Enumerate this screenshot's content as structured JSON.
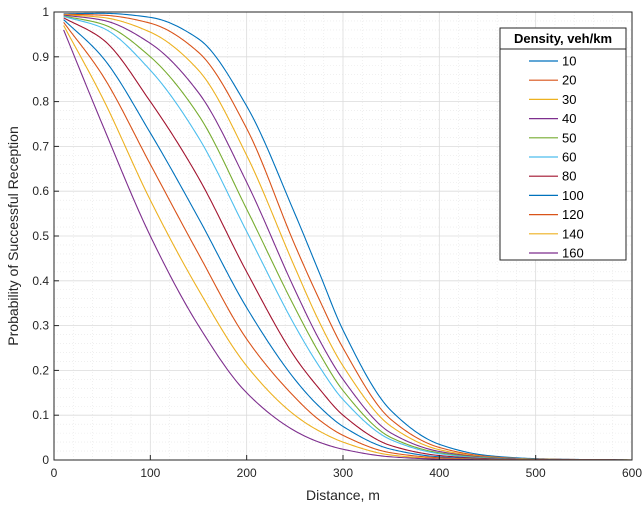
{
  "chart_data": {
    "type": "line",
    "title": "",
    "xlabel": "Distance, m",
    "ylabel": "Probability of Successful Reception",
    "xlim": [
      0,
      600
    ],
    "ylim": [
      0,
      1
    ],
    "x_ticks": [
      "0",
      "100",
      "200",
      "300",
      "400",
      "500",
      "600"
    ],
    "y_ticks": [
      "0",
      "0.1",
      "0.2",
      "0.3",
      "0.4",
      "0.5",
      "0.6",
      "0.7",
      "0.8",
      "0.9",
      "1"
    ],
    "grid": true,
    "minor_grid": true,
    "legend": {
      "title": "Density, veh/km",
      "placement": "top-right"
    },
    "series": [
      {
        "name": "10",
        "color": "#0072BD",
        "points": [
          [
            10,
            0.996
          ],
          [
            50,
            0.997
          ],
          [
            100,
            0.988
          ],
          [
            150,
            0.94
          ],
          [
            200,
            0.79
          ],
          [
            250,
            0.55
          ],
          [
            275,
            0.42
          ],
          [
            300,
            0.29
          ],
          [
            350,
            0.11
          ],
          [
            400,
            0.035
          ],
          [
            450,
            0.01
          ],
          [
            500,
            0.003
          ],
          [
            550,
            0.001
          ],
          [
            600,
            0
          ]
        ]
      },
      {
        "name": "20",
        "color": "#D95319",
        "points": [
          [
            10,
            0.995
          ],
          [
            50,
            0.993
          ],
          [
            100,
            0.975
          ],
          [
            150,
            0.91
          ],
          [
            200,
            0.74
          ],
          [
            250,
            0.48
          ],
          [
            275,
            0.36
          ],
          [
            300,
            0.25
          ],
          [
            350,
            0.09
          ],
          [
            400,
            0.028
          ],
          [
            450,
            0.008
          ],
          [
            500,
            0.002
          ],
          [
            550,
            0.001
          ],
          [
            600,
            0
          ]
        ]
      },
      {
        "name": "30",
        "color": "#EDB120",
        "points": [
          [
            10,
            0.994
          ],
          [
            50,
            0.988
          ],
          [
            100,
            0.955
          ],
          [
            150,
            0.87
          ],
          [
            200,
            0.68
          ],
          [
            250,
            0.43
          ],
          [
            275,
            0.31
          ],
          [
            300,
            0.21
          ],
          [
            350,
            0.075
          ],
          [
            400,
            0.023
          ],
          [
            450,
            0.007
          ],
          [
            500,
            0.002
          ],
          [
            550,
            0.0005
          ],
          [
            600,
            0
          ]
        ]
      },
      {
        "name": "40",
        "color": "#7E2F8E",
        "points": [
          [
            10,
            0.993
          ],
          [
            50,
            0.982
          ],
          [
            100,
            0.93
          ],
          [
            150,
            0.82
          ],
          [
            200,
            0.62
          ],
          [
            250,
            0.38
          ],
          [
            275,
            0.27
          ],
          [
            300,
            0.18
          ],
          [
            350,
            0.06
          ],
          [
            400,
            0.019
          ],
          [
            450,
            0.006
          ],
          [
            500,
            0.0015
          ],
          [
            550,
            0.0004
          ],
          [
            600,
            0
          ]
        ]
      },
      {
        "name": "50",
        "color": "#77AC30",
        "points": [
          [
            10,
            0.991
          ],
          [
            50,
            0.973
          ],
          [
            100,
            0.9
          ],
          [
            150,
            0.77
          ],
          [
            200,
            0.56
          ],
          [
            250,
            0.34
          ],
          [
            275,
            0.24
          ],
          [
            300,
            0.155
          ],
          [
            350,
            0.05
          ],
          [
            400,
            0.016
          ],
          [
            450,
            0.005
          ],
          [
            500,
            0.0012
          ],
          [
            550,
            0.0003
          ],
          [
            600,
            0
          ]
        ]
      },
      {
        "name": "60",
        "color": "#4DBEEE",
        "points": [
          [
            10,
            0.99
          ],
          [
            50,
            0.965
          ],
          [
            100,
            0.87
          ],
          [
            150,
            0.72
          ],
          [
            200,
            0.51
          ],
          [
            250,
            0.3
          ],
          [
            275,
            0.21
          ],
          [
            300,
            0.135
          ],
          [
            350,
            0.045
          ],
          [
            400,
            0.014
          ],
          [
            450,
            0.004
          ],
          [
            500,
            0.001
          ],
          [
            550,
            0.0002
          ],
          [
            600,
            0
          ]
        ]
      },
      {
        "name": "80",
        "color": "#A2142F",
        "points": [
          [
            10,
            0.987
          ],
          [
            50,
            0.94
          ],
          [
            100,
            0.8
          ],
          [
            150,
            0.63
          ],
          [
            200,
            0.42
          ],
          [
            250,
            0.23
          ],
          [
            275,
            0.16
          ],
          [
            300,
            0.1
          ],
          [
            350,
            0.032
          ],
          [
            400,
            0.01
          ],
          [
            450,
            0.003
          ],
          [
            500,
            0.0008
          ],
          [
            550,
            0.0002
          ],
          [
            600,
            0
          ]
        ]
      },
      {
        "name": "100",
        "color": "#0072BD",
        "points": [
          [
            10,
            0.983
          ],
          [
            50,
            0.9
          ],
          [
            100,
            0.73
          ],
          [
            150,
            0.54
          ],
          [
            200,
            0.34
          ],
          [
            250,
            0.18
          ],
          [
            275,
            0.12
          ],
          [
            300,
            0.075
          ],
          [
            350,
            0.024
          ],
          [
            400,
            0.007
          ],
          [
            450,
            0.002
          ],
          [
            500,
            0.0005
          ],
          [
            550,
            0.0001
          ],
          [
            600,
            0
          ]
        ]
      },
      {
        "name": "120",
        "color": "#D95319",
        "points": [
          [
            10,
            0.977
          ],
          [
            50,
            0.86
          ],
          [
            100,
            0.66
          ],
          [
            150,
            0.46
          ],
          [
            200,
            0.27
          ],
          [
            250,
            0.14
          ],
          [
            275,
            0.09
          ],
          [
            300,
            0.055
          ],
          [
            350,
            0.016
          ],
          [
            400,
            0.005
          ],
          [
            450,
            0.0015
          ],
          [
            500,
            0.0004
          ],
          [
            550,
            0.0001
          ],
          [
            600,
            0
          ]
        ]
      },
      {
        "name": "140",
        "color": "#EDB120",
        "points": [
          [
            10,
            0.97
          ],
          [
            50,
            0.81
          ],
          [
            100,
            0.58
          ],
          [
            150,
            0.38
          ],
          [
            200,
            0.21
          ],
          [
            250,
            0.1
          ],
          [
            275,
            0.065
          ],
          [
            300,
            0.04
          ],
          [
            350,
            0.011
          ],
          [
            400,
            0.003
          ],
          [
            450,
            0.001
          ],
          [
            500,
            0.0003
          ],
          [
            550,
            0.0001
          ],
          [
            600,
            0
          ]
        ]
      },
      {
        "name": "160",
        "color": "#7E2F8E",
        "points": [
          [
            10,
            0.96
          ],
          [
            50,
            0.75
          ],
          [
            100,
            0.5
          ],
          [
            150,
            0.3
          ],
          [
            200,
            0.15
          ],
          [
            250,
            0.065
          ],
          [
            275,
            0.04
          ],
          [
            300,
            0.024
          ],
          [
            350,
            0.007
          ],
          [
            400,
            0.002
          ],
          [
            450,
            0.0006
          ],
          [
            500,
            0.0002
          ],
          [
            550,
            0.0001
          ],
          [
            600,
            0
          ]
        ]
      }
    ]
  }
}
